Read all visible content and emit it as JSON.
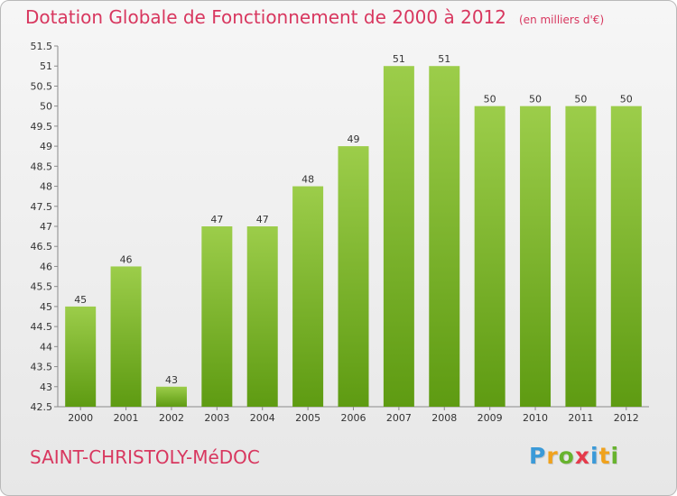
{
  "title": "Dotation Globale de Fonctionnement de 2000 à 2012",
  "unit": "(en milliers d'€)",
  "commune": "SAINT-CHRISTOLY-MéDOC",
  "logo": {
    "letters": [
      "P",
      "r",
      "o",
      "x",
      "i",
      "t",
      "i"
    ],
    "colors": [
      "#3b9ad8",
      "#f0a21d",
      "#67b32e",
      "#e53a4b",
      "#3b9ad8",
      "#f0a21d",
      "#67b32e"
    ]
  },
  "colors": {
    "bar_top": "#9ccd4a",
    "bar_bottom": "#5e9b12",
    "text": "#333333",
    "accent": "#d8375f"
  },
  "chart_data": {
    "type": "bar",
    "categories": [
      "2000",
      "2001",
      "2002",
      "2003",
      "2004",
      "2005",
      "2006",
      "2007",
      "2008",
      "2009",
      "2010",
      "2011",
      "2012"
    ],
    "values": [
      45,
      46,
      43,
      47,
      47,
      48,
      49,
      51,
      51,
      50,
      50,
      50,
      50
    ],
    "data_labels": [
      "45",
      "46",
      "43",
      "47",
      "47",
      "48",
      "49",
      "51",
      "51",
      "50",
      "50",
      "50",
      "50"
    ],
    "yticks": [
      42.5,
      43,
      43.5,
      44,
      44.5,
      45,
      45.5,
      46,
      46.5,
      47,
      47.5,
      48,
      48.5,
      49,
      49.5,
      50,
      50.5,
      51,
      51.5
    ],
    "ylim": [
      42.5,
      51.5
    ],
    "title": "Dotation Globale de Fonctionnement de 2000 à 2012",
    "xlabel": "",
    "ylabel": "",
    "grid": false,
    "legend": "none"
  }
}
